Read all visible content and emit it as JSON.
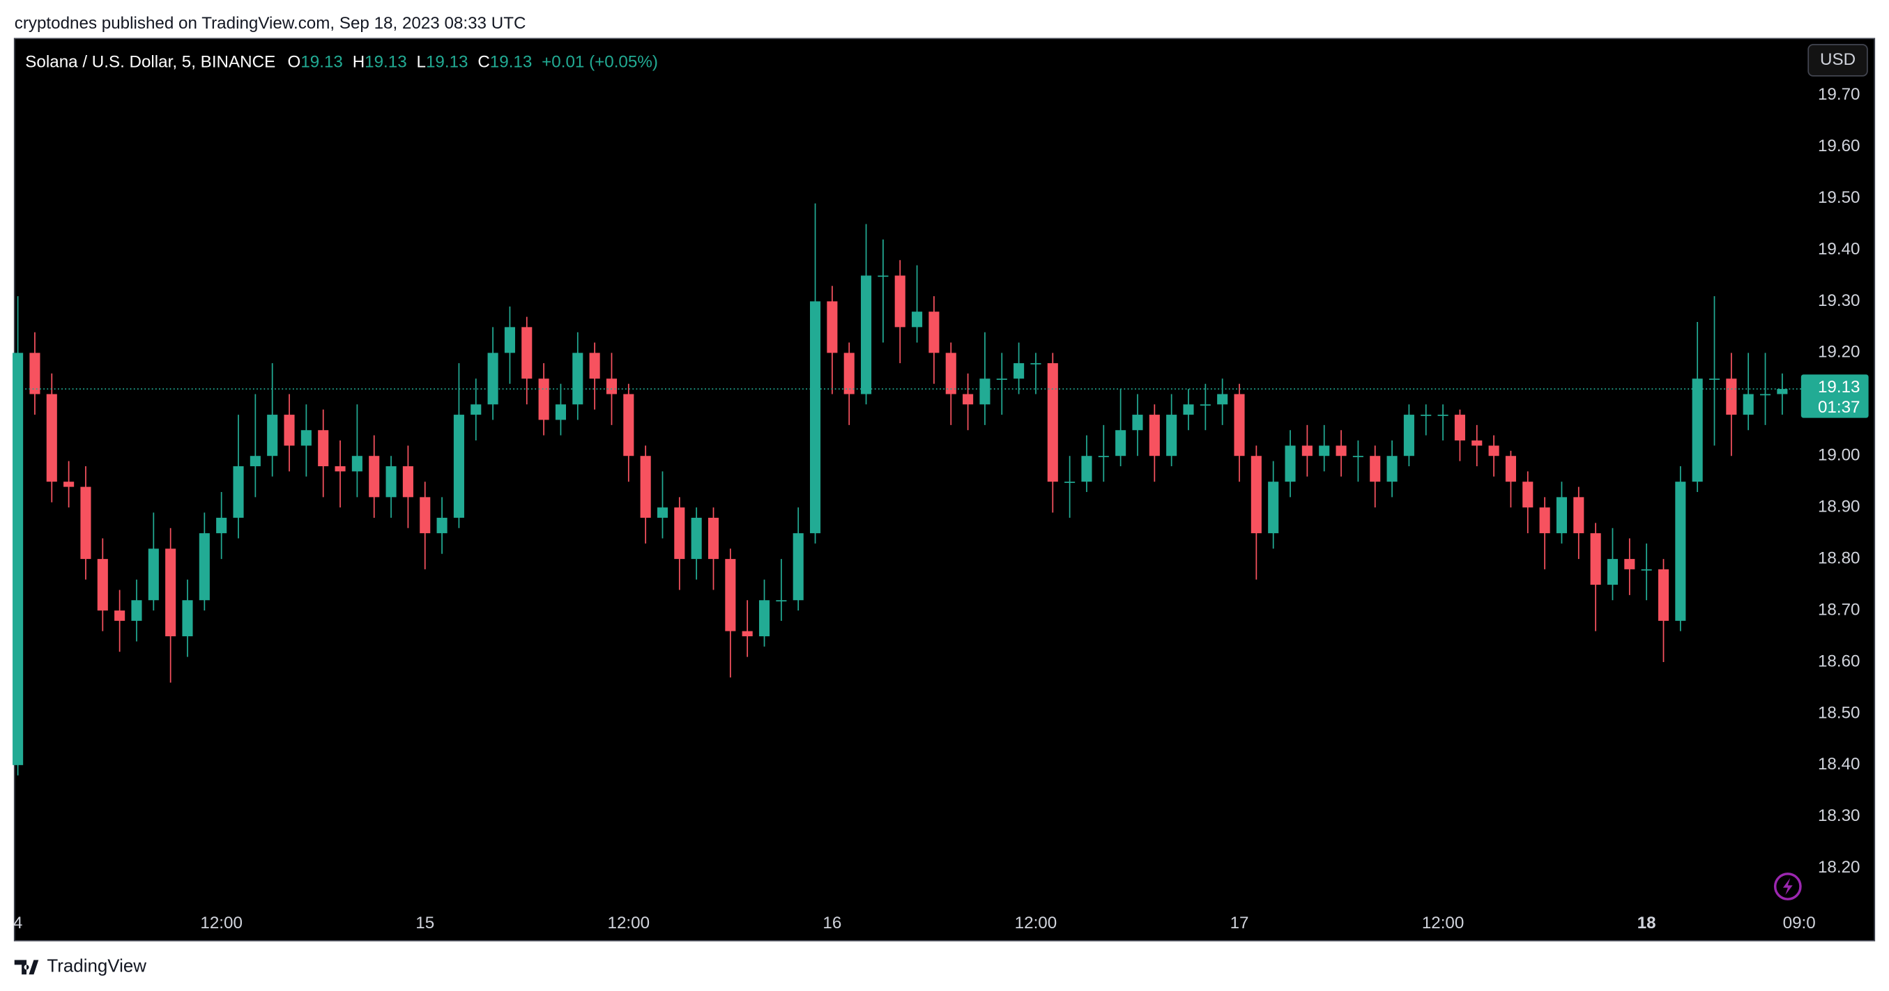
{
  "header": {
    "publisher": "cryptodnes published on TradingView.com, Sep 18, 2023 08:33 UTC",
    "currency_button": "USD",
    "brand": "TradingView"
  },
  "chart_data": {
    "type": "candlestick",
    "symbol": "Solana / U.S. Dollar, 5, BINANCE",
    "legend_values": [
      {
        "label": "O",
        "value": 19.13
      },
      {
        "label": "H",
        "value": 19.13
      },
      {
        "label": "L",
        "value": 19.13
      },
      {
        "label": "C",
        "value": 19.13
      }
    ],
    "change": "+0.01 (+0.05%)",
    "last_price": 19.13,
    "countdown": "01:37",
    "up_color": "#22ab94",
    "down_color": "#f7525f",
    "x": [
      0,
      1,
      2,
      3,
      4,
      5,
      6,
      7,
      8,
      9,
      10,
      11,
      12,
      13,
      14,
      15,
      16,
      17,
      18,
      19,
      20,
      21,
      22,
      23,
      24,
      25,
      26,
      27,
      28,
      29,
      30,
      31,
      32,
      33,
      34,
      35,
      36,
      37,
      38,
      39,
      40,
      41,
      42,
      43,
      44,
      45,
      46,
      47,
      48,
      49,
      50,
      51,
      52,
      53,
      54,
      55,
      56,
      57,
      58,
      59,
      60,
      61,
      62,
      63,
      64,
      65,
      66,
      67,
      68,
      69,
      70,
      71,
      72,
      73,
      74,
      75,
      76,
      77,
      78,
      79,
      80,
      81,
      82,
      83,
      84,
      85,
      86,
      87,
      88,
      89,
      90,
      91,
      92,
      93,
      94,
      95,
      96,
      97,
      98,
      99,
      100,
      101,
      102,
      103,
      104
    ],
    "open": [
      18.4,
      19.2,
      19.12,
      18.95,
      18.94,
      18.8,
      18.7,
      18.68,
      18.72,
      18.82,
      18.65,
      18.72,
      18.85,
      18.88,
      18.98,
      19.0,
      19.08,
      19.02,
      19.05,
      18.98,
      18.97,
      19.0,
      18.92,
      18.98,
      18.92,
      18.85,
      18.88,
      19.08,
      19.1,
      19.2,
      19.25,
      19.15,
      19.07,
      19.1,
      19.2,
      19.15,
      19.12,
      19.0,
      18.88,
      18.9,
      18.8,
      18.88,
      18.8,
      18.66,
      18.65,
      18.72,
      18.72,
      18.85,
      19.3,
      19.2,
      19.12,
      19.35,
      19.35,
      19.25,
      19.28,
      19.2,
      19.12,
      19.1,
      19.15,
      19.15,
      19.18,
      19.18,
      18.95,
      18.95,
      19.0,
      19.0,
      19.05,
      19.08,
      19.0,
      19.08,
      19.1,
      19.1,
      19.12,
      19.0,
      18.85,
      18.95,
      19.02,
      19.0,
      19.02,
      19.0,
      19.0,
      18.95,
      19.0,
      19.08,
      19.08,
      19.08,
      19.03,
      19.02,
      19.0,
      18.95,
      18.9,
      18.85,
      18.92,
      18.85,
      18.75,
      18.8,
      18.78,
      18.78,
      18.68,
      18.95,
      19.15,
      19.15,
      19.08,
      19.12,
      19.12
    ],
    "high": [
      19.31,
      19.24,
      19.16,
      18.99,
      18.98,
      18.84,
      18.74,
      18.76,
      18.89,
      18.86,
      18.76,
      18.89,
      18.93,
      19.08,
      19.12,
      19.18,
      19.12,
      19.1,
      19.09,
      19.03,
      19.1,
      19.04,
      19.0,
      19.02,
      18.95,
      18.92,
      19.18,
      19.15,
      19.25,
      19.29,
      19.27,
      19.18,
      19.14,
      19.24,
      19.22,
      19.2,
      19.14,
      19.02,
      18.97,
      18.92,
      18.9,
      18.9,
      18.82,
      18.72,
      18.76,
      18.8,
      18.9,
      19.49,
      19.33,
      19.22,
      19.45,
      19.42,
      19.38,
      19.37,
      19.31,
      19.22,
      19.16,
      19.24,
      19.2,
      19.22,
      19.2,
      19.2,
      19.0,
      19.04,
      19.06,
      19.13,
      19.12,
      19.1,
      19.12,
      19.13,
      19.14,
      19.15,
      19.14,
      19.02,
      18.99,
      19.05,
      19.06,
      19.06,
      19.05,
      19.03,
      19.02,
      19.03,
      19.1,
      19.1,
      19.1,
      19.09,
      19.06,
      19.04,
      19.01,
      18.97,
      18.92,
      18.95,
      18.94,
      18.87,
      18.86,
      18.84,
      18.83,
      18.8,
      18.98,
      19.26,
      19.31,
      19.2,
      19.2,
      19.2,
      19.16
    ],
    "low": [
      18.38,
      19.08,
      18.91,
      18.9,
      18.76,
      18.66,
      18.62,
      18.64,
      18.7,
      18.56,
      18.61,
      18.7,
      18.8,
      18.84,
      18.92,
      18.96,
      18.97,
      18.96,
      18.92,
      18.9,
      18.92,
      18.88,
      18.88,
      18.86,
      18.78,
      18.81,
      18.86,
      19.03,
      19.07,
      19.14,
      19.1,
      19.04,
      19.04,
      19.07,
      19.09,
      19.06,
      18.95,
      18.83,
      18.84,
      18.74,
      18.76,
      18.74,
      18.57,
      18.61,
      18.63,
      18.68,
      18.7,
      18.83,
      19.12,
      19.06,
      19.1,
      19.22,
      19.18,
      19.22,
      19.14,
      19.06,
      19.05,
      19.06,
      19.08,
      19.12,
      19.12,
      18.89,
      18.88,
      18.93,
      18.95,
      18.98,
      19.0,
      18.95,
      18.98,
      19.05,
      19.05,
      19.06,
      18.95,
      18.76,
      18.82,
      18.92,
      18.96,
      18.97,
      18.96,
      18.95,
      18.9,
      18.92,
      18.98,
      19.04,
      19.03,
      18.99,
      18.98,
      18.96,
      18.9,
      18.85,
      18.78,
      18.83,
      18.8,
      18.66,
      18.72,
      18.73,
      18.72,
      18.6,
      18.66,
      18.93,
      19.02,
      19.0,
      19.05,
      19.06,
      19.08
    ],
    "close": [
      19.2,
      19.12,
      18.95,
      18.94,
      18.8,
      18.7,
      18.68,
      18.72,
      18.82,
      18.65,
      18.72,
      18.85,
      18.88,
      18.98,
      19.0,
      19.08,
      19.02,
      19.05,
      18.98,
      18.97,
      19.0,
      18.92,
      18.98,
      18.92,
      18.85,
      18.88,
      19.08,
      19.1,
      19.2,
      19.25,
      19.15,
      19.07,
      19.1,
      19.2,
      19.15,
      19.12,
      19.0,
      18.88,
      18.9,
      18.8,
      18.88,
      18.8,
      18.66,
      18.65,
      18.72,
      18.72,
      18.85,
      19.3,
      19.2,
      19.12,
      19.35,
      19.35,
      19.25,
      19.28,
      19.2,
      19.12,
      19.1,
      19.15,
      19.15,
      19.18,
      19.18,
      18.95,
      18.95,
      19.0,
      19.0,
      19.05,
      19.08,
      19.0,
      19.08,
      19.1,
      19.1,
      19.12,
      19.0,
      18.85,
      18.95,
      19.02,
      19.0,
      19.02,
      19.0,
      19.0,
      18.95,
      19.0,
      19.08,
      19.08,
      19.08,
      19.03,
      19.02,
      19.0,
      18.95,
      18.9,
      18.85,
      18.92,
      18.85,
      18.75,
      18.8,
      18.78,
      18.78,
      18.68,
      18.95,
      19.15,
      19.15,
      19.08,
      19.12,
      19.12,
      19.13
    ],
    "xlim": [
      -0.2,
      105.25
    ],
    "xticks": [
      {
        "value": 0,
        "label": "4"
      },
      {
        "value": 12,
        "label": "12:00"
      },
      {
        "value": 24,
        "label": "15"
      },
      {
        "value": 36,
        "label": "12:00"
      },
      {
        "value": 48,
        "label": "16"
      },
      {
        "value": 60,
        "label": "12:00"
      },
      {
        "value": 72,
        "label": "17"
      },
      {
        "value": 84,
        "label": "12:00"
      },
      {
        "value": 96,
        "label": "18"
      },
      {
        "value": 105,
        "label": "09:0"
      }
    ],
    "bold_xtick": 8,
    "ylim": [
      18.12,
      19.81
    ],
    "yticks": [
      {
        "value": 18.2,
        "label": "18.20"
      },
      {
        "value": 18.3,
        "label": "18.30"
      },
      {
        "value": 18.4,
        "label": "18.40"
      },
      {
        "value": 18.5,
        "label": "18.50"
      },
      {
        "value": 18.6,
        "label": "18.60"
      },
      {
        "value": 18.7,
        "label": "18.70"
      },
      {
        "value": 18.8,
        "label": "18.80"
      },
      {
        "value": 18.9,
        "label": "18.90"
      },
      {
        "value": 19,
        "label": "19.00"
      },
      {
        "value": 19.1,
        "label": "19.10"
      },
      {
        "value": 19.2,
        "label": "19.20"
      },
      {
        "value": 19.3,
        "label": "19.30"
      },
      {
        "value": 19.4,
        "label": "19.40"
      },
      {
        "value": 19.5,
        "label": "19.50"
      },
      {
        "value": 19.6,
        "label": "19.60"
      },
      {
        "value": 19.7,
        "label": "19.70"
      }
    ],
    "grid": false
  }
}
